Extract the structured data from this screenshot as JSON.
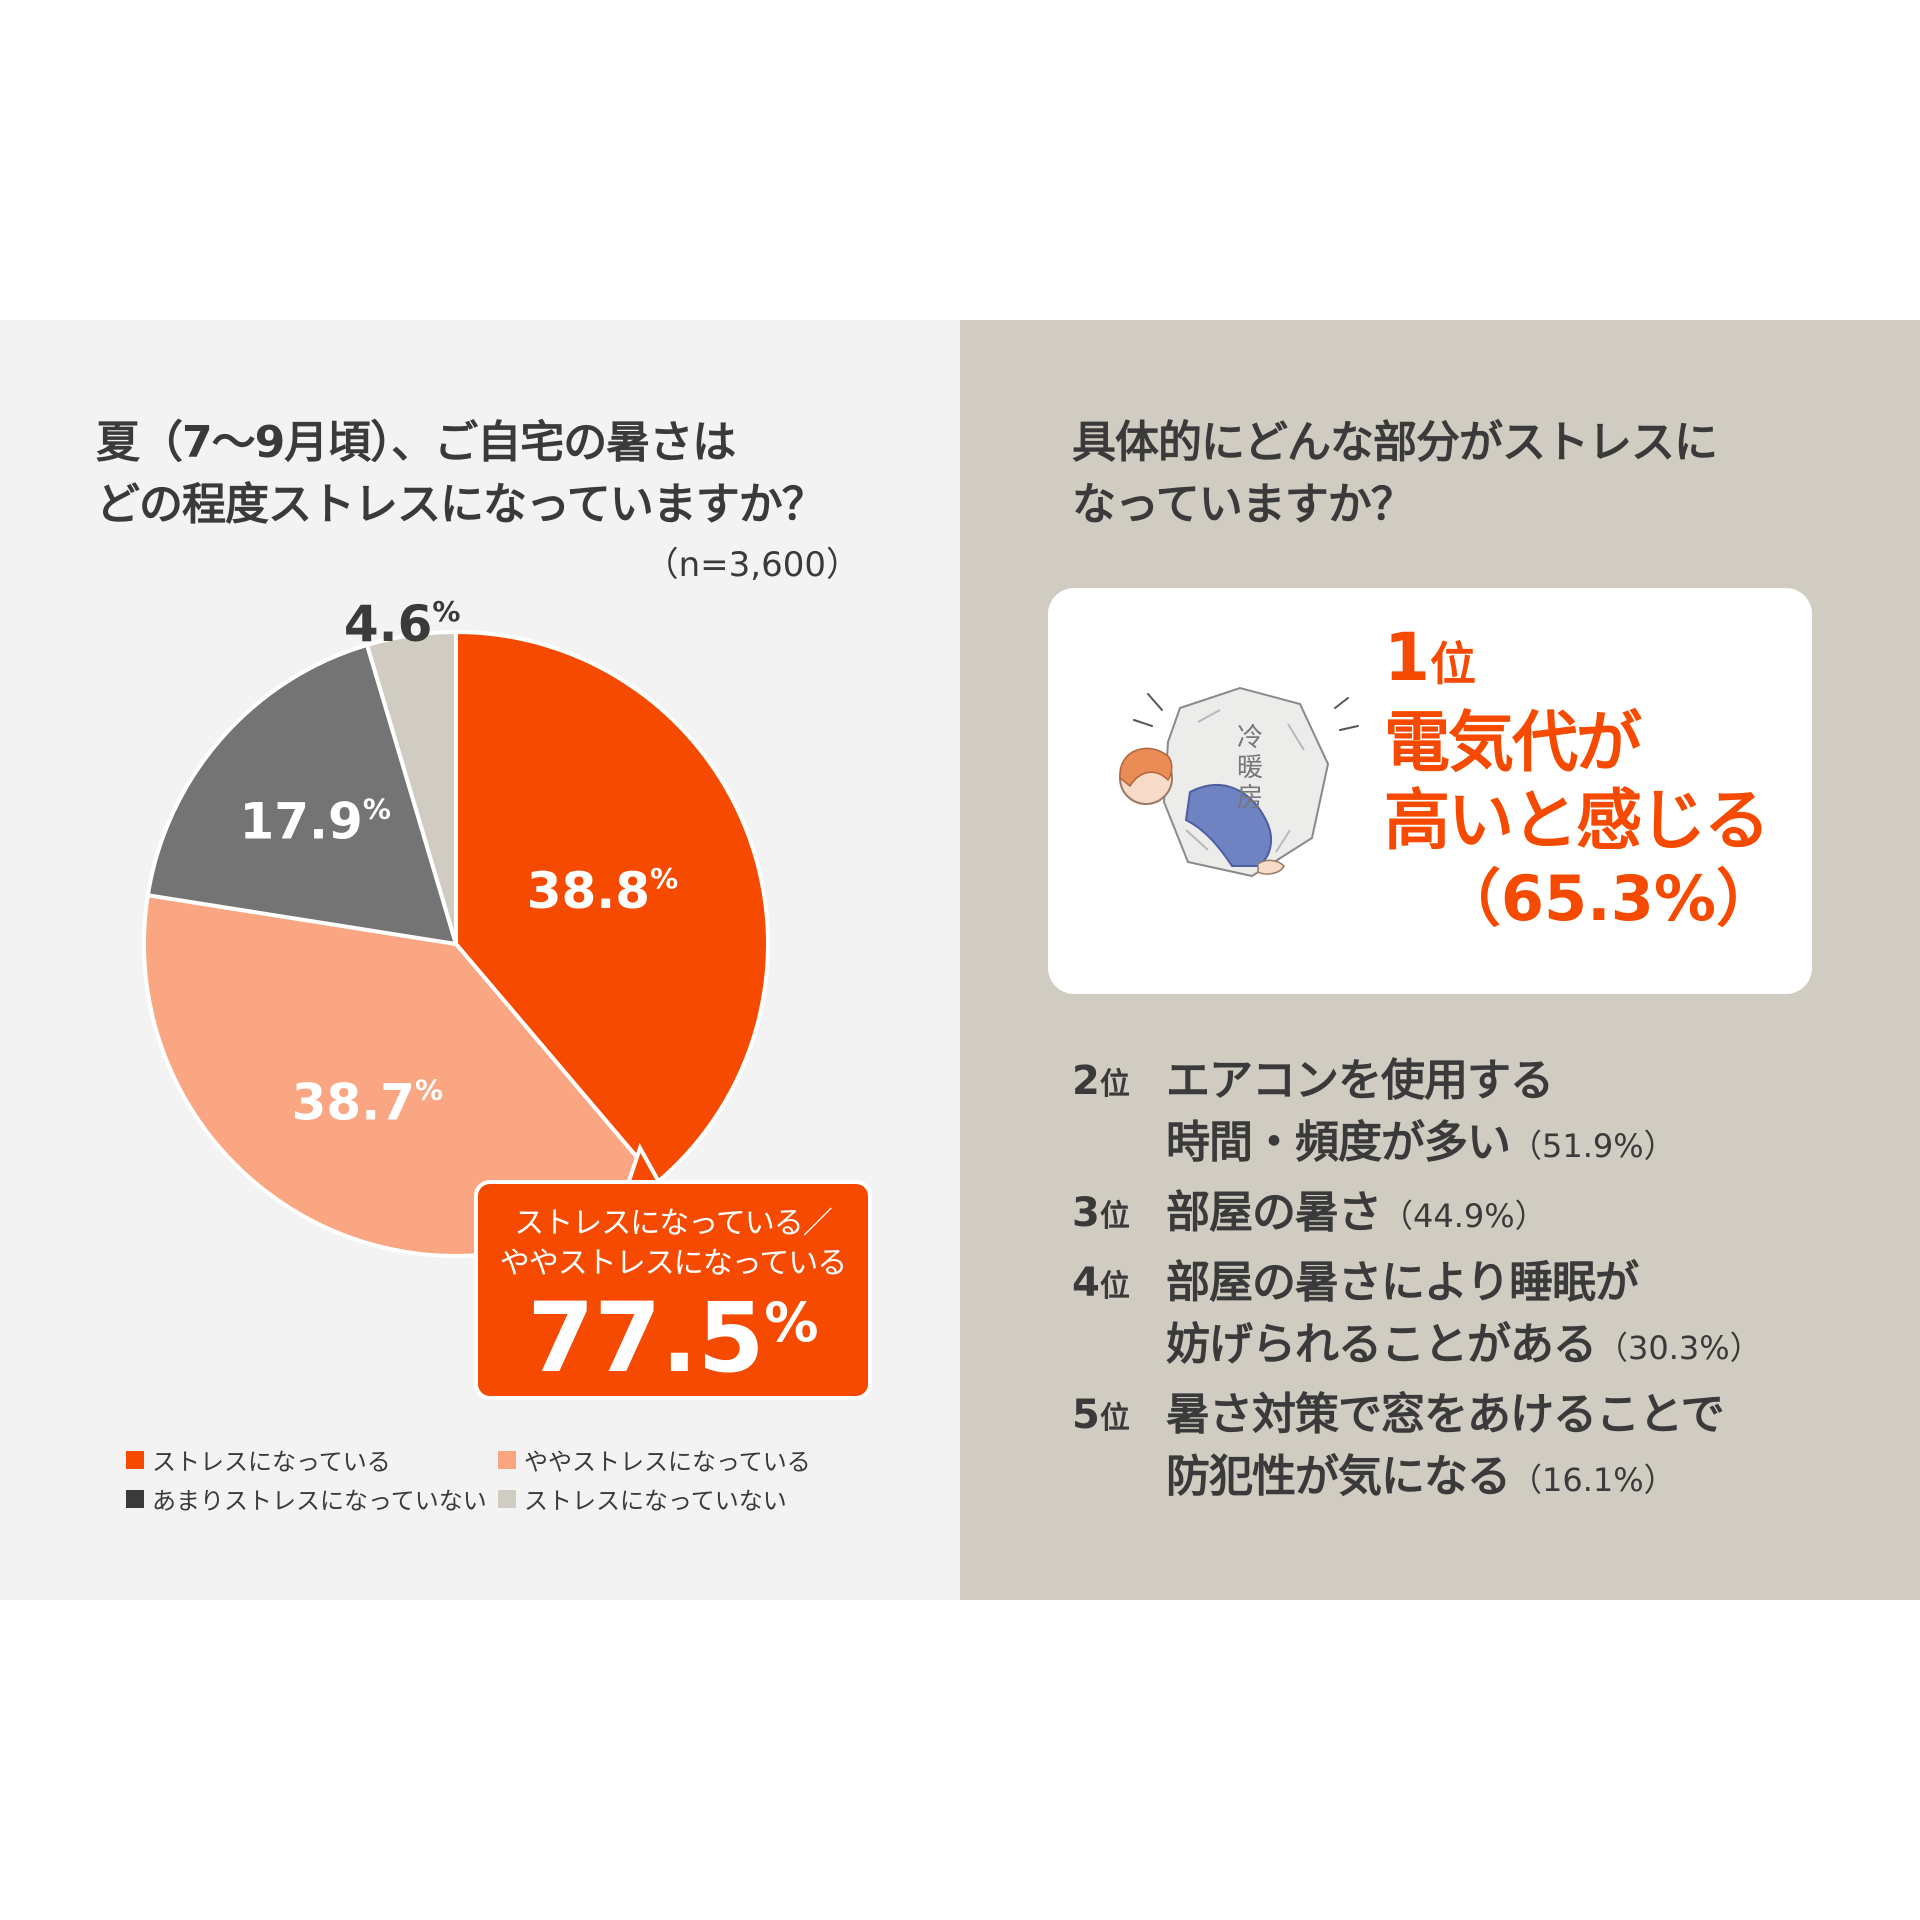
{
  "left": {
    "title_line1": "夏（7〜9月頃）、ご自宅の暑さは",
    "title_line2": "どの程度ストレスになっていますか？",
    "sample": "（n=3,600）"
  },
  "chart_data": {
    "type": "pie",
    "slices": [
      {
        "label": "ストレスになっている",
        "value": 38.8,
        "display": "38.8",
        "color": "#f54a00"
      },
      {
        "label": "ややストレスになっている",
        "value": 38.7,
        "display": "38.7",
        "color": "#fba683"
      },
      {
        "label": "あまりストレスになっていない",
        "value": 17.9,
        "display": "17.9",
        "color": "#747474"
      },
      {
        "label": "ストレスになっていない",
        "value": 4.6,
        "display": "4.6",
        "color": "#d0ccc1"
      }
    ],
    "unit": "%",
    "callout": {
      "line1": "ストレスになっている／",
      "line2": "ややストレスになっている",
      "value": "77.5",
      "unit": "%"
    }
  },
  "legend": [
    {
      "label": "ストレスになっている",
      "color": "#f54a00"
    },
    {
      "label": "ややストレスになっている",
      "color": "#fba683"
    },
    {
      "label": "あまりストレスになっていない",
      "color": "#3a3a3a"
    },
    {
      "label": "ストレスになっていない",
      "color": "#d0ccc1"
    }
  ],
  "right": {
    "title_line1": "具体的にどんな部分がストレスに",
    "title_line2": "なっていますか？",
    "illustration_text": [
      "冷",
      "暖",
      "房"
    ],
    "rank1": {
      "rank": "1",
      "unit": "位",
      "line1": "電気代が",
      "line2": "高いと感じる",
      "pct": "（65.3%）"
    },
    "ranks": [
      {
        "rank": "2",
        "unit": "位",
        "line1": "エアコンを使用する",
        "line2": "時間・頻度が多い",
        "pct": "（51.9%）"
      },
      {
        "rank": "3",
        "unit": "位",
        "line1": "部屋の暑さ",
        "line2": "",
        "pct": "（44.9%）"
      },
      {
        "rank": "4",
        "unit": "位",
        "line1": "部屋の暑さにより睡眠が",
        "line2": "妨げられることがある",
        "pct": "（30.3%）"
      },
      {
        "rank": "5",
        "unit": "位",
        "line1": "暑さ対策で窓をあけることで",
        "line2": "防犯性が気になる",
        "pct": "（16.1%）"
      }
    ]
  },
  "colors": {
    "accent": "#f54a00",
    "light_orange": "#fba683",
    "dark_gray": "#747474",
    "beige": "#d0ccc1",
    "text": "#3a3a3a",
    "left_bg": "#f3f3f3"
  }
}
